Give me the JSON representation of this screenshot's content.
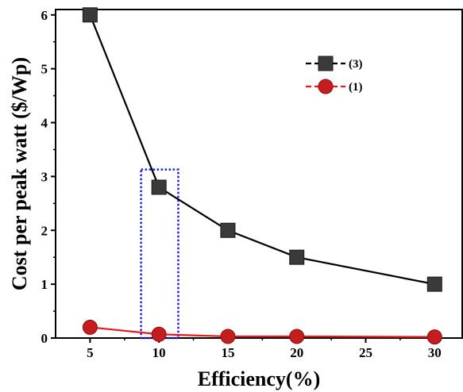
{
  "chart_data": {
    "type": "line",
    "title": "",
    "xlabel": "Efficiency(%)",
    "ylabel": "Cost per peak watt ($/Wp)",
    "xlim": [
      2.5,
      32
    ],
    "ylim": [
      0,
      6.1
    ],
    "xticks": [
      5,
      10,
      15,
      20,
      25,
      30
    ],
    "yticks": [
      0,
      1,
      2,
      3,
      4,
      5,
      6
    ],
    "grid": false,
    "legend_position": "top-right",
    "series": [
      {
        "name": "(3)",
        "color": "#000000",
        "marker_color": "#3a3a3a",
        "marker": "square",
        "x": [
          5,
          10,
          15,
          20,
          30
        ],
        "y": [
          6.0,
          2.8,
          2.0,
          1.5,
          1.0
        ]
      },
      {
        "name": "(1)",
        "color": "#e8191c",
        "marker_color": "#c41d1d",
        "marker": "circle",
        "x": [
          5,
          10,
          15,
          20,
          30
        ],
        "y": [
          0.2,
          0.07,
          0.03,
          0.03,
          0.02
        ]
      }
    ],
    "highlight_box": {
      "x_range": [
        8.7,
        11.4
      ],
      "y_range": [
        0,
        3.13
      ],
      "color": "#1f1fe0",
      "style": "dotted"
    }
  }
}
